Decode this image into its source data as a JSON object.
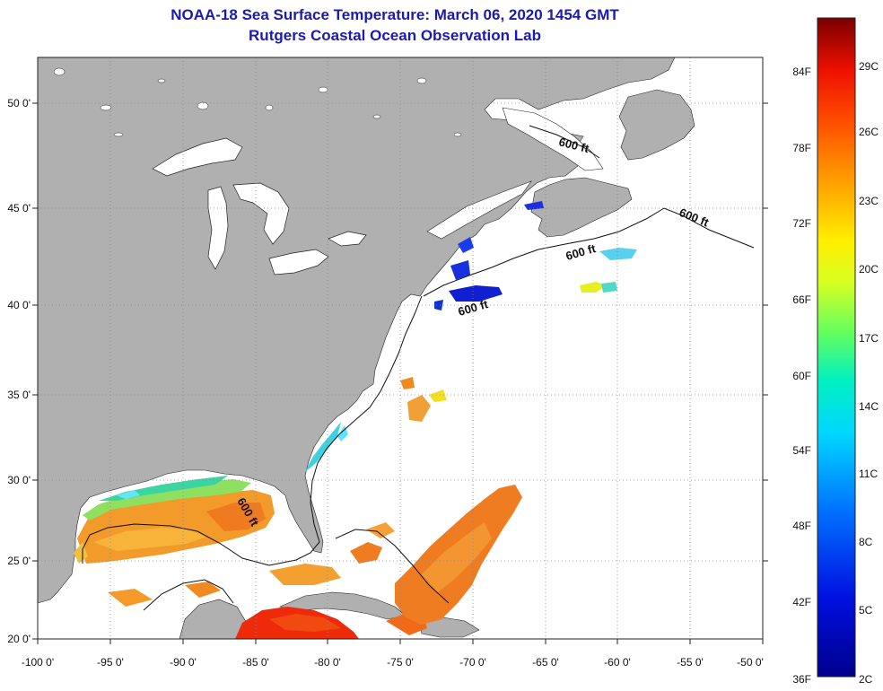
{
  "header": {
    "title_line1": "NOAA-18 Sea Surface Temperature:  March 06, 2020 1454 GMT",
    "title_line2": "Rutgers Coastal Ocean Observation Lab"
  },
  "map": {
    "lon_labels": [
      "-100 0'",
      "-95 0'",
      "-90 0'",
      "-85 0'",
      "-80 0'",
      "-75 0'",
      "-70 0'",
      "-65 0'",
      "-60 0'",
      "-55 0'",
      "-50 0'"
    ],
    "lat_labels": [
      "50 0'",
      "45 0'",
      "40 0'",
      "35 0'",
      "30 0'",
      "25 0'",
      "20 0'"
    ],
    "isobath_label": "600 ft",
    "colors": {
      "land": "#b0b0b0",
      "water": "#ffffff",
      "grid": "#888888"
    }
  },
  "colorbar": {
    "fahrenheit_labels": [
      "84F",
      "78F",
      "72F",
      "66F",
      "60F",
      "54F",
      "48F",
      "42F",
      "36F"
    ],
    "celsius_labels": [
      "29C",
      "26C",
      "23C",
      "20C",
      "17C",
      "14C",
      "11C",
      "8C",
      "5C",
      "2C"
    ]
  }
}
